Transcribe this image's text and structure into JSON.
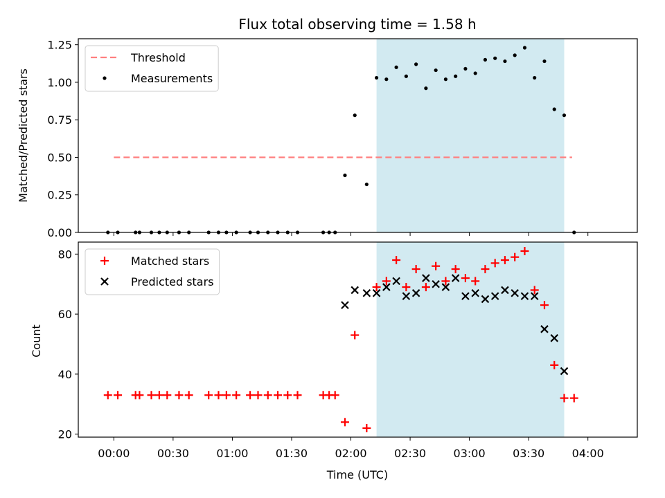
{
  "chart_data": [
    {
      "type": "scatter",
      "title": "Flux total observing time = 1.58 h",
      "xlabel": "",
      "ylabel": "Matched/Predicted stars",
      "ylim": [
        0,
        1.29
      ],
      "yticks": [
        "0.00",
        "0.25",
        "0.50",
        "0.75",
        "1.00",
        "1.25"
      ],
      "ytick_values": [
        0,
        0.25,
        0.5,
        0.75,
        1.0,
        1.25
      ],
      "shaded_span": [
        "02:13",
        "03:48"
      ],
      "shaded_color": "#add8e6",
      "legend_position": "upper left",
      "threshold": {
        "name": "Threshold",
        "y": 0.5,
        "x_start": "00:00",
        "x_end": "03:52",
        "color": "#ff7f7f"
      },
      "series": [
        {
          "name": "Measurements",
          "color": "#000000",
          "marker": "dot",
          "points": [
            [
              "23:57",
              0
            ],
            [
              "00:02",
              0
            ],
            [
              "00:11",
              0
            ],
            [
              "00:13",
              0
            ],
            [
              "00:19",
              0
            ],
            [
              "00:23",
              0
            ],
            [
              "00:27",
              0
            ],
            [
              "00:33",
              0
            ],
            [
              "00:38",
              0
            ],
            [
              "00:48",
              0
            ],
            [
              "00:53",
              0
            ],
            [
              "00:57",
              0
            ],
            [
              "01:02",
              0
            ],
            [
              "01:09",
              0
            ],
            [
              "01:13",
              0
            ],
            [
              "01:18",
              0
            ],
            [
              "01:23",
              0
            ],
            [
              "01:28",
              0
            ],
            [
              "01:33",
              0
            ],
            [
              "01:46",
              0
            ],
            [
              "01:49",
              0
            ],
            [
              "01:52",
              0
            ],
            [
              "01:57",
              0.38
            ],
            [
              "02:02",
              0.78
            ],
            [
              "02:08",
              0.32
            ],
            [
              "02:13",
              1.03
            ],
            [
              "02:18",
              1.02
            ],
            [
              "02:23",
              1.1
            ],
            [
              "02:28",
              1.04
            ],
            [
              "02:33",
              1.12
            ],
            [
              "02:38",
              0.96
            ],
            [
              "02:43",
              1.08
            ],
            [
              "02:48",
              1.02
            ],
            [
              "02:53",
              1.04
            ],
            [
              "02:58",
              1.09
            ],
            [
              "03:03",
              1.06
            ],
            [
              "03:08",
              1.15
            ],
            [
              "03:13",
              1.16
            ],
            [
              "03:18",
              1.14
            ],
            [
              "03:23",
              1.18
            ],
            [
              "03:28",
              1.23
            ],
            [
              "03:33",
              1.03
            ],
            [
              "03:38",
              1.14
            ],
            [
              "03:43",
              0.82
            ],
            [
              "03:48",
              0.78
            ],
            [
              "03:53",
              0
            ]
          ]
        }
      ]
    },
    {
      "type": "scatter",
      "title": "",
      "xlabel": "Time (UTC)",
      "ylabel": "Count",
      "ylim": [
        19,
        84
      ],
      "yticks": [
        "20",
        "40",
        "60",
        "80"
      ],
      "ytick_values": [
        20,
        40,
        60,
        80
      ],
      "xticks": [
        "00:00",
        "00:30",
        "01:00",
        "01:30",
        "02:00",
        "02:30",
        "03:00",
        "03:30",
        "04:00"
      ],
      "shaded_span": [
        "02:13",
        "03:48"
      ],
      "shaded_color": "#add8e6",
      "legend_position": "upper left",
      "series": [
        {
          "name": "Matched stars",
          "color": "#ff0000",
          "marker": "plus",
          "points": [
            [
              "23:57",
              33
            ],
            [
              "00:02",
              33
            ],
            [
              "00:11",
              33
            ],
            [
              "00:13",
              33
            ],
            [
              "00:19",
              33
            ],
            [
              "00:23",
              33
            ],
            [
              "00:27",
              33
            ],
            [
              "00:33",
              33
            ],
            [
              "00:38",
              33
            ],
            [
              "00:48",
              33
            ],
            [
              "00:53",
              33
            ],
            [
              "00:57",
              33
            ],
            [
              "01:02",
              33
            ],
            [
              "01:09",
              33
            ],
            [
              "01:13",
              33
            ],
            [
              "01:18",
              33
            ],
            [
              "01:23",
              33
            ],
            [
              "01:28",
              33
            ],
            [
              "01:33",
              33
            ],
            [
              "01:46",
              33
            ],
            [
              "01:49",
              33
            ],
            [
              "01:52",
              33
            ],
            [
              "01:57",
              24
            ],
            [
              "02:02",
              53
            ],
            [
              "02:08",
              22
            ],
            [
              "02:13",
              69
            ],
            [
              "02:18",
              71
            ],
            [
              "02:23",
              78
            ],
            [
              "02:28",
              69
            ],
            [
              "02:33",
              75
            ],
            [
              "02:38",
              69
            ],
            [
              "02:43",
              76
            ],
            [
              "02:48",
              71
            ],
            [
              "02:53",
              75
            ],
            [
              "02:58",
              72
            ],
            [
              "03:03",
              71
            ],
            [
              "03:08",
              75
            ],
            [
              "03:13",
              77
            ],
            [
              "03:18",
              78
            ],
            [
              "03:23",
              79
            ],
            [
              "03:28",
              81
            ],
            [
              "03:33",
              68
            ],
            [
              "03:38",
              63
            ],
            [
              "03:43",
              43
            ],
            [
              "03:48",
              32
            ],
            [
              "03:53",
              32
            ]
          ]
        },
        {
          "name": "Predicted stars",
          "color": "#000000",
          "marker": "x",
          "points": [
            [
              "01:57",
              63
            ],
            [
              "02:02",
              68
            ],
            [
              "02:08",
              67
            ],
            [
              "02:13",
              67
            ],
            [
              "02:18",
              69
            ],
            [
              "02:23",
              71
            ],
            [
              "02:28",
              66
            ],
            [
              "02:33",
              67
            ],
            [
              "02:38",
              72
            ],
            [
              "02:43",
              70
            ],
            [
              "02:48",
              69
            ],
            [
              "02:53",
              72
            ],
            [
              "02:58",
              66
            ],
            [
              "03:03",
              67
            ],
            [
              "03:08",
              65
            ],
            [
              "03:13",
              66
            ],
            [
              "03:18",
              68
            ],
            [
              "03:23",
              67
            ],
            [
              "03:28",
              66
            ],
            [
              "03:33",
              66
            ],
            [
              "03:38",
              55
            ],
            [
              "03:43",
              52
            ],
            [
              "03:48",
              41
            ]
          ]
        }
      ]
    }
  ]
}
